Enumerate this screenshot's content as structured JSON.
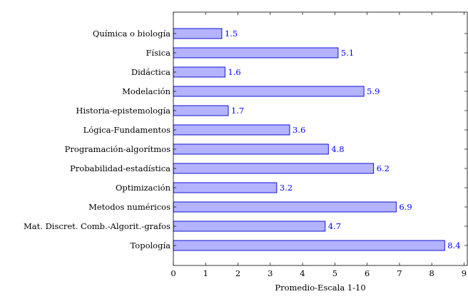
{
  "chart_data": {
    "type": "bar",
    "orientation": "horizontal",
    "title": "",
    "xlabel": "Promedio-Escala 1-10",
    "ylabel": "",
    "xlim": [
      0,
      9.1
    ],
    "xticks": [
      "0",
      "1",
      "2",
      "3",
      "4",
      "5",
      "6",
      "7",
      "8",
      "9"
    ],
    "categories": [
      "Química o biología",
      "Física",
      "Didáctica",
      "Modelación",
      "Historia-epistemología",
      "Lógica-Fundamentos",
      "Programación-algorítmos",
      "Probabilidad-estadística",
      "Optimización",
      "Metodos numéricos",
      "Mat. Discret. Comb.-Algorit.-grafos",
      "Topología"
    ],
    "values": [
      1.5,
      5.1,
      1.6,
      5.9,
      1.7,
      3.6,
      4.8,
      6.2,
      3.2,
      6.9,
      4.7,
      8.4
    ],
    "value_labels": [
      "1.5",
      "5.1",
      "1.6",
      "5.9",
      "1.7",
      "3.6",
      "4.8",
      "6.2",
      "3.2",
      "6.9",
      "4.7",
      "8.4"
    ],
    "grid": false,
    "legend": "none",
    "colors": {
      "bar_fill": "#b3b3ff",
      "bar_stroke": "#0000cc",
      "value_label": "#0000ff",
      "axis": "#000000"
    }
  }
}
